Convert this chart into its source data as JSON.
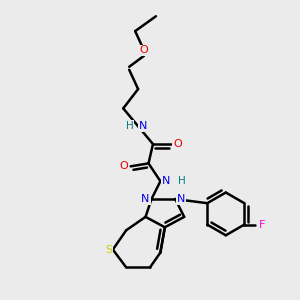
{
  "bg_color": "#ebebeb",
  "atom_colors": {
    "C": "#000000",
    "N": "#0000ee",
    "O": "#ee0000",
    "S": "#cccc00",
    "F": "#ff00cc",
    "H_N": "#008080"
  },
  "bond_color": "#000000",
  "bond_width": 1.8
}
